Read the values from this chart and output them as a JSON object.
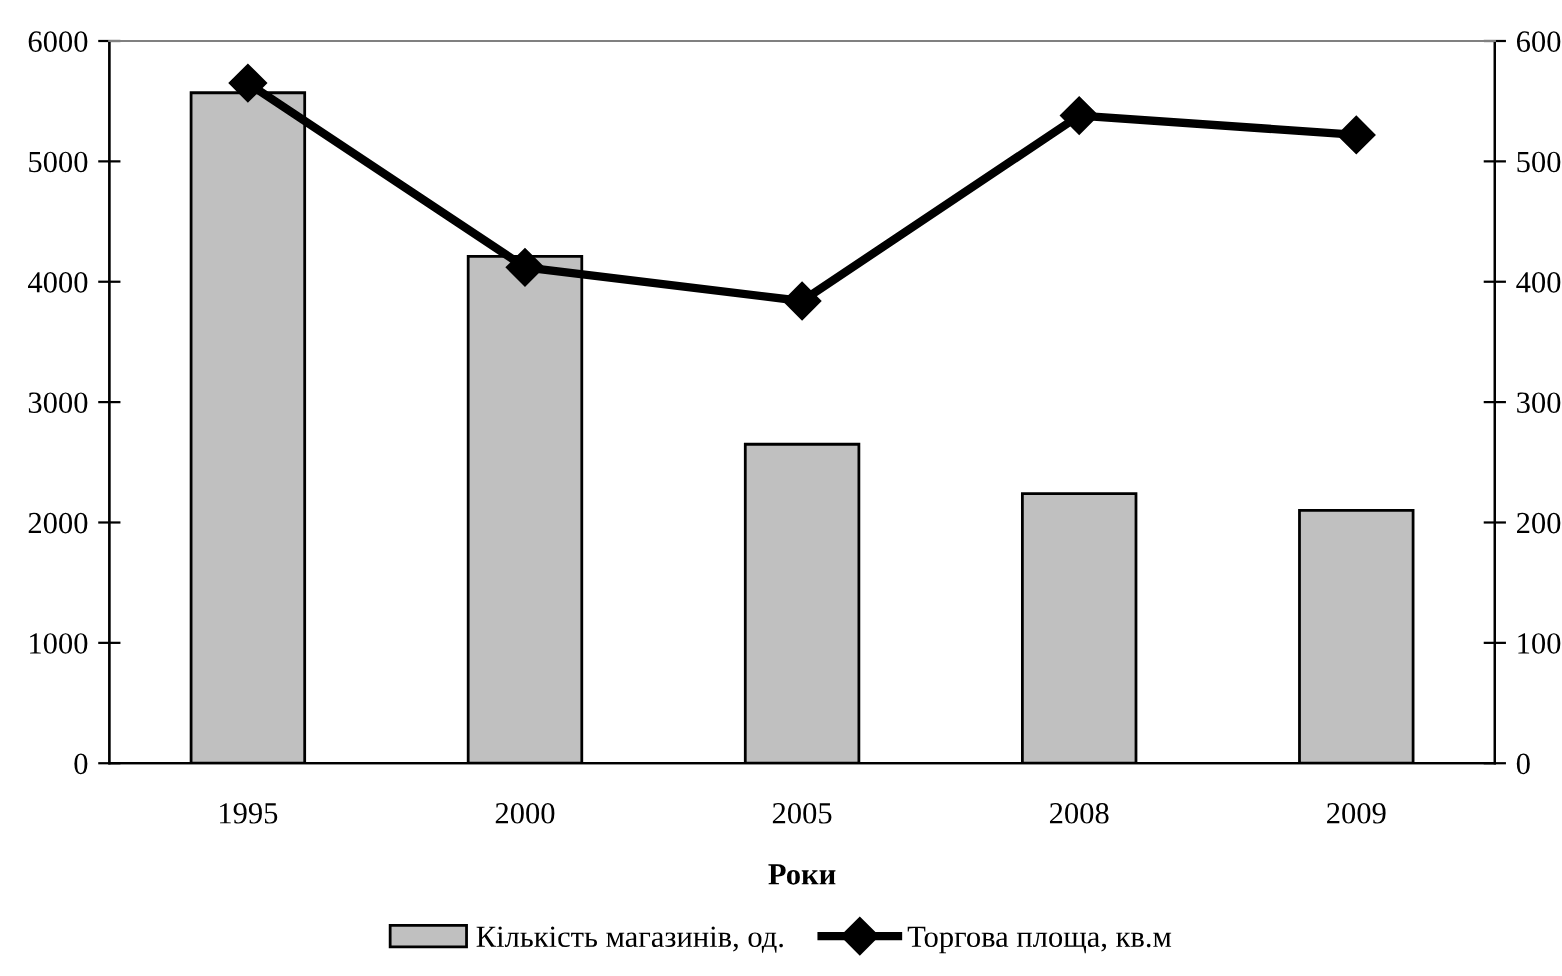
{
  "chart_data": {
    "type": "bar",
    "xlabel": "Роки",
    "categories": [
      "1995",
      "2000",
      "2005",
      "2008",
      "2009"
    ],
    "series": [
      {
        "name": "Кількість магазинів, од.",
        "color": "#c0c0c0",
        "values": [
          5570,
          4210,
          2650,
          2240,
          2100
        ]
      },
      {
        "name": "Торгова площа, кв.м",
        "type": "line",
        "axis": "y2",
        "color": "#000000",
        "marker": "diamond",
        "values": [
          565,
          412,
          384,
          538,
          522
        ]
      }
    ],
    "ylim": [
      0,
      6000
    ],
    "yticks": [
      0,
      1000,
      2000,
      3000,
      4000,
      5000,
      6000
    ],
    "y2lim": [
      0,
      600
    ],
    "y2ticks": [
      0,
      100,
      200,
      300,
      400,
      500,
      600
    ],
    "grid": false,
    "legend": "bottom"
  }
}
